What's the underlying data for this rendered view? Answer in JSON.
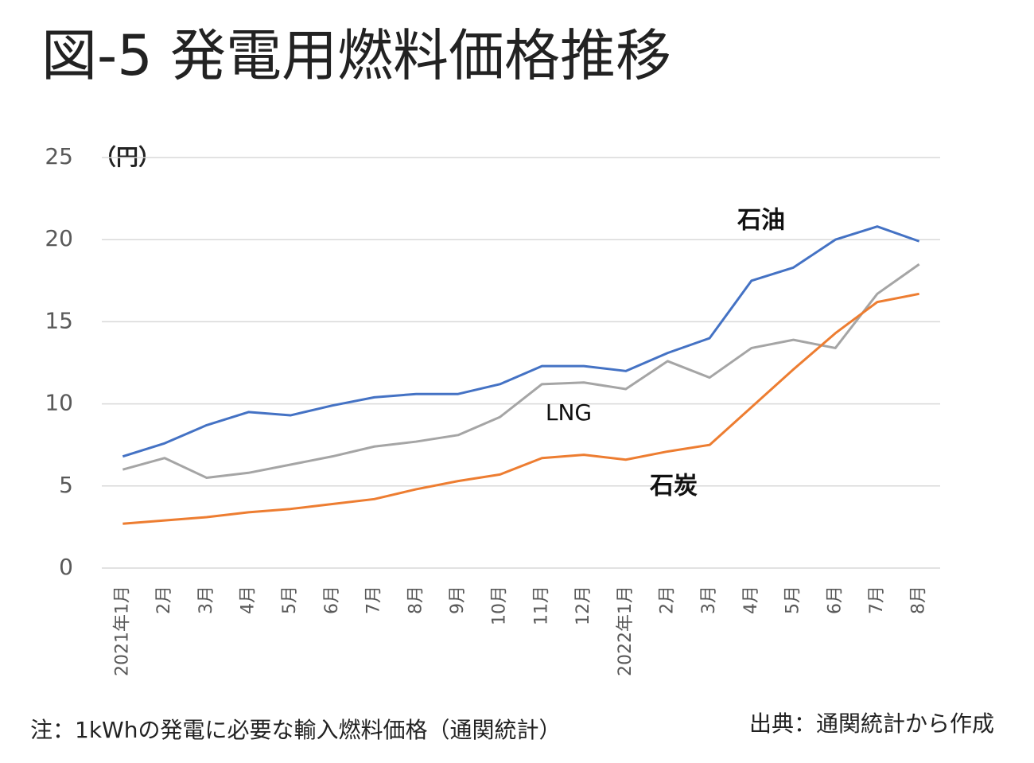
{
  "chart_data": {
    "type": "line",
    "title": "図-5 発電用燃料価格推移",
    "y_unit": "（円）",
    "categories": [
      "2021年1月",
      "2月",
      "3月",
      "4月",
      "5月",
      "6月",
      "7月",
      "8月",
      "9月",
      "10月",
      "11月",
      "12月",
      "2022年1月",
      "2月",
      "3月",
      "4月",
      "5月",
      "6月",
      "7月",
      "8月"
    ],
    "series": [
      {
        "name": "石油",
        "color": "#4472c4",
        "values": [
          6.8,
          7.6,
          8.7,
          9.5,
          9.3,
          9.9,
          10.4,
          10.6,
          10.6,
          11.2,
          12.3,
          12.3,
          12.0,
          13.1,
          14.0,
          17.5,
          18.3,
          20.0,
          20.8,
          19.9
        ]
      },
      {
        "name": "LNG",
        "color": "#a5a5a5",
        "values": [
          6.0,
          6.7,
          5.5,
          5.8,
          6.3,
          6.8,
          7.4,
          7.7,
          8.1,
          9.2,
          11.2,
          11.3,
          10.9,
          12.6,
          11.6,
          13.4,
          13.9,
          13.4,
          16.7,
          18.5
        ]
      },
      {
        "name": "石炭",
        "color": "#ed7d31",
        "values": [
          2.7,
          2.9,
          3.1,
          3.4,
          3.6,
          3.9,
          4.2,
          4.8,
          5.3,
          5.7,
          6.7,
          6.9,
          6.6,
          7.1,
          7.5,
          9.8,
          12.1,
          14.3,
          16.2,
          16.7
        ]
      }
    ],
    "ylim": [
      0,
      25
    ],
    "yticks": [
      0,
      5,
      10,
      15,
      20,
      25
    ],
    "grid": true,
    "note": "注：1kWhの発電に必要な輸入燃料価格（通関統計）",
    "source": "出典：通関統計から作成"
  }
}
